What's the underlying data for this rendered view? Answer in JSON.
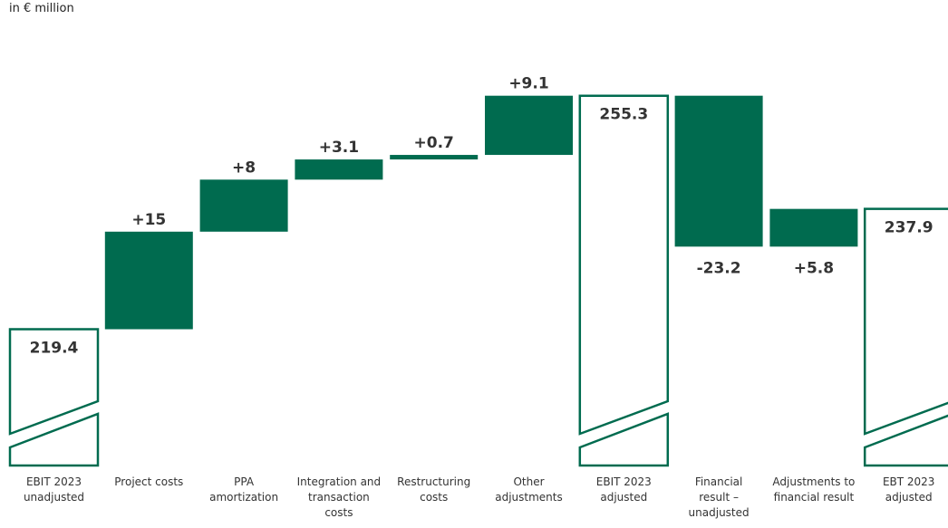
{
  "unit_label": "in € million",
  "colors": {
    "bar": "#006b4f",
    "outline": "#006b4f",
    "text": "#333333"
  },
  "chart_data": {
    "type": "waterfall",
    "title": "",
    "ylabel": "in € million",
    "ylim": [
      200,
      265
    ],
    "categories": [
      [
        "EBIT 2023",
        "unadjusted"
      ],
      [
        "Project costs"
      ],
      [
        "PPA",
        "amortization"
      ],
      [
        "Integration and",
        "transaction",
        "costs"
      ],
      [
        "Restructuring",
        "costs"
      ],
      [
        "Other",
        "adjustments"
      ],
      [
        "EBIT 2023",
        "adjusted"
      ],
      [
        "Financial",
        "result –",
        "unadjusted"
      ],
      [
        "Adjustments to",
        "financial result"
      ],
      [
        "EBT 2023",
        "adjusted"
      ]
    ],
    "steps": [
      {
        "kind": "total",
        "value": 219.4,
        "label": "219.4"
      },
      {
        "kind": "delta",
        "value": 15,
        "label": "+15"
      },
      {
        "kind": "delta",
        "value": 8,
        "label": "+8"
      },
      {
        "kind": "delta",
        "value": 3.1,
        "label": "+3.1"
      },
      {
        "kind": "delta",
        "value": 0.7,
        "label": "+0.7"
      },
      {
        "kind": "delta",
        "value": 9.1,
        "label": "+9.1"
      },
      {
        "kind": "total",
        "value": 255.3,
        "label": "255.3"
      },
      {
        "kind": "delta",
        "value": -23.2,
        "label": "-23.2"
      },
      {
        "kind": "delta",
        "value": 5.8,
        "label": "+5.8"
      },
      {
        "kind": "total",
        "value": 237.9,
        "label": "237.9"
      }
    ]
  }
}
